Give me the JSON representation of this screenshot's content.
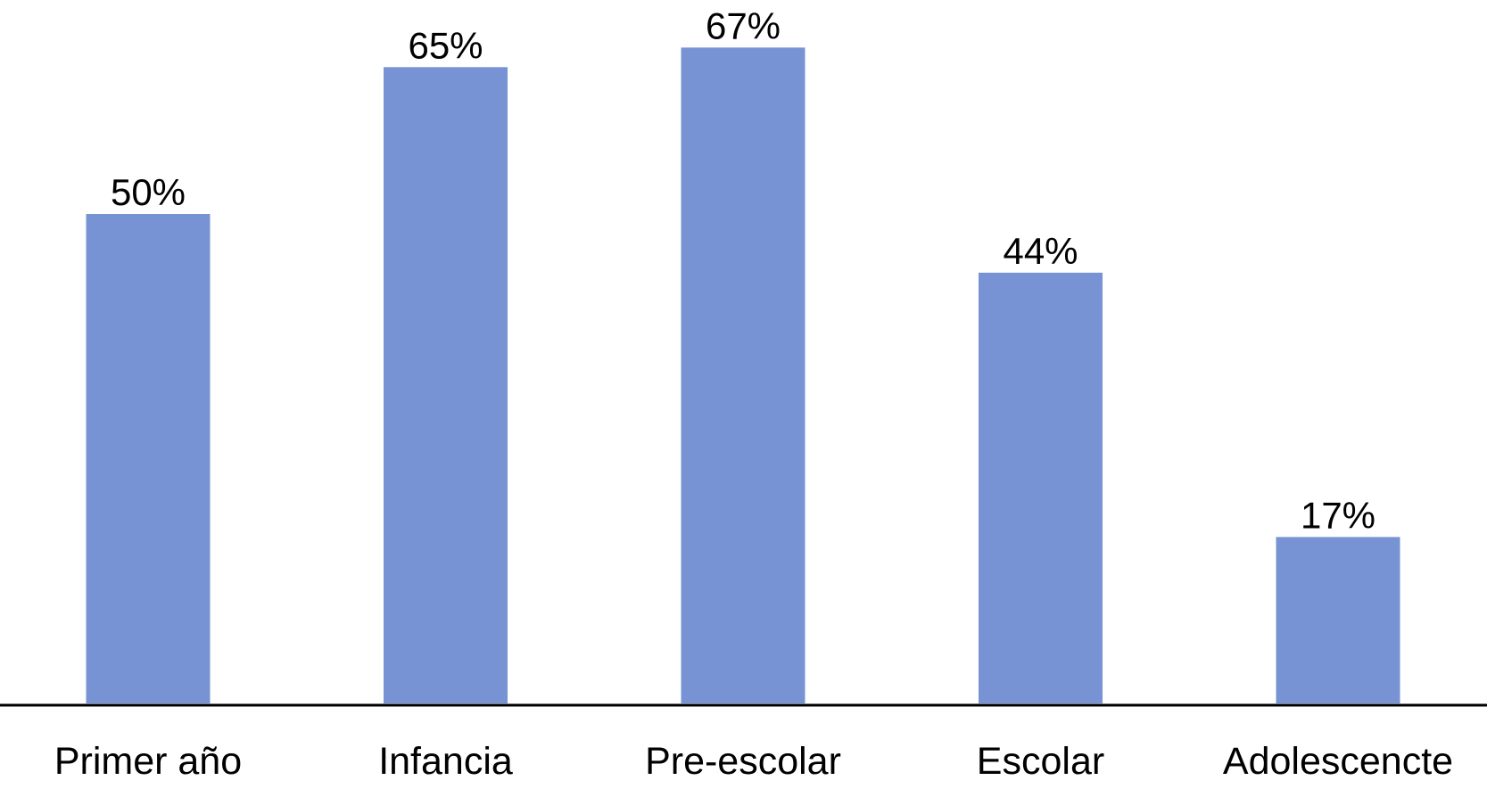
{
  "chart_data": {
    "type": "bar",
    "categories": [
      "Primer año",
      "Infancia",
      "Pre-escolar",
      "Escolar",
      "Adolescencte"
    ],
    "values": [
      50,
      65,
      67,
      44,
      17
    ],
    "value_labels": [
      "50%",
      "65%",
      "67%",
      "44%",
      "17%"
    ],
    "color": "#7793d3"
  }
}
